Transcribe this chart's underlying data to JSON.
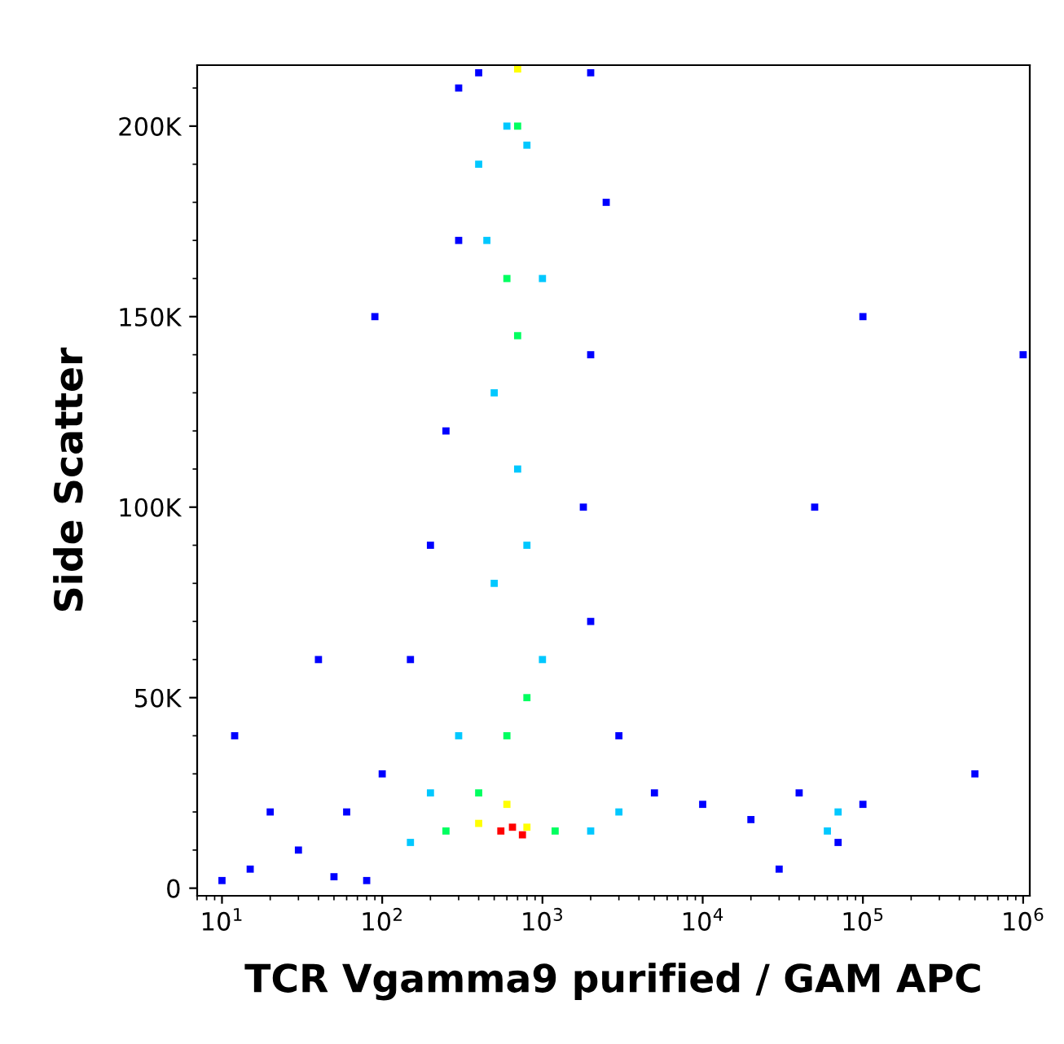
{
  "chart_data": {
    "type": "scatter",
    "xlabel": "TCR Vgamma9 purified / GAM APC",
    "ylabel": "Side Scatter",
    "log": "x",
    "marker": "square",
    "grid": false,
    "xlim": [
      7,
      1100000
    ],
    "ylim": [
      -2000,
      216000
    ],
    "xticks": [
      {
        "value": 10,
        "label": "10$^{1}$"
      },
      {
        "value": 100,
        "label": "10$^{2}$"
      },
      {
        "value": 1000,
        "label": "10$^{3}$"
      },
      {
        "value": 10000,
        "label": "10$^{4}$"
      },
      {
        "value": 100000,
        "label": "10$^{5}$"
      },
      {
        "value": 1000000,
        "label": "10$^{6}$"
      }
    ],
    "yticks": [
      {
        "value": 0,
        "label": "0"
      },
      {
        "value": 50000,
        "label": "50K"
      },
      {
        "value": 100000,
        "label": "100K"
      },
      {
        "value": 150000,
        "label": "150K"
      },
      {
        "value": 200000,
        "label": "200K"
      }
    ],
    "series": [
      {
        "color": "#0000ff",
        "x": [
          15,
          30,
          50,
          80,
          100,
          150,
          200,
          250,
          300,
          300,
          400,
          2000,
          2500,
          2000,
          1800,
          2000,
          3000,
          5000,
          10000,
          20000,
          40000,
          70000,
          100000,
          30000,
          50000,
          100000,
          1000000,
          12,
          40,
          90,
          60,
          20,
          500000,
          10
        ],
        "values": [
          5000,
          10000,
          3000,
          2000,
          30000,
          60000,
          90000,
          120000,
          170000,
          210000,
          214000,
          214000,
          180000,
          140000,
          100000,
          70000,
          40000,
          25000,
          22000,
          18000,
          25000,
          12000,
          22000,
          5000,
          100000,
          150000,
          140000,
          40000,
          60000,
          150000,
          20000,
          20000,
          30000,
          2000
        ]
      },
      {
        "color": "#00c8ff",
        "x": [
          400,
          600,
          800,
          1000,
          500,
          700,
          500,
          1000,
          300,
          200,
          150,
          2000,
          3000,
          60000,
          70000,
          800,
          450
        ],
        "values": [
          190000,
          200000,
          195000,
          160000,
          130000,
          110000,
          80000,
          60000,
          40000,
          25000,
          12000,
          15000,
          20000,
          15000,
          20000,
          90000,
          170000
        ]
      },
      {
        "color": "#00ff60",
        "x": [
          600,
          700,
          800,
          600,
          250,
          1200,
          400,
          700
        ],
        "values": [
          160000,
          145000,
          50000,
          40000,
          15000,
          15000,
          25000,
          200000
        ]
      },
      {
        "color": "#ffff00",
        "x": [
          400,
          800,
          600,
          700
        ],
        "values": [
          17000,
          16000,
          22000,
          215000
        ]
      },
      {
        "color": "#ff0000",
        "x": [
          550,
          650,
          750
        ],
        "values": [
          15000,
          16000,
          14000
        ]
      }
    ]
  }
}
